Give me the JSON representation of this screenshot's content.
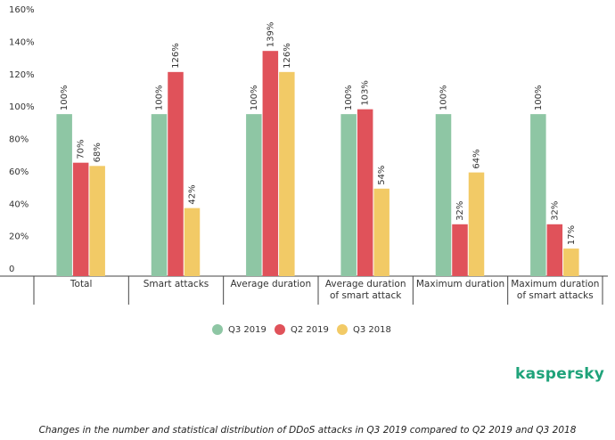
{
  "chart_data": {
    "type": "bar",
    "categories": [
      "Total",
      "Smart attacks",
      "Average duration",
      "Average duration of smart attack",
      "Maximum duration",
      "Maximum duration of smart attacks"
    ],
    "series": [
      {
        "name": "Q3 2019",
        "color": "#8ec6a4",
        "values": [
          100,
          100,
          100,
          100,
          100,
          100
        ],
        "value_labels": [
          "100%",
          "100%",
          "100%",
          "100%",
          "100%",
          "100%"
        ]
      },
      {
        "name": "Q2 2019",
        "color": "#e0525a",
        "values": [
          70,
          126,
          139,
          103,
          32,
          32
        ],
        "value_labels": [
          "70%",
          "126%",
          "139%",
          "103%",
          "32%",
          "32%"
        ]
      },
      {
        "name": "Q3 2018",
        "color": "#f2ca66",
        "values": [
          68,
          42,
          126,
          54,
          64,
          17
        ],
        "value_labels": [
          "68%",
          "42%",
          "126%",
          "54%",
          "64%",
          "17%"
        ]
      }
    ],
    "ylim": [
      0,
      160
    ],
    "yticks": [
      0,
      {
        "value": 20,
        "label": "20%"
      },
      {
        "value": 40,
        "label": "40%"
      },
      {
        "value": 60,
        "label": "60%"
      },
      {
        "value": 80,
        "label": "80%"
      },
      {
        "value": 100,
        "label": "100%"
      },
      {
        "value": 120,
        "label": "120%"
      },
      {
        "value": 140,
        "label": "140%"
      },
      {
        "value": 160,
        "label": "160%"
      }
    ],
    "grid": false,
    "brand": "kaspersky",
    "caption": "Changes in the number and statistical distribution of DDoS attacks in Q3 2019 compared to Q2 2019 and Q3 2018"
  }
}
